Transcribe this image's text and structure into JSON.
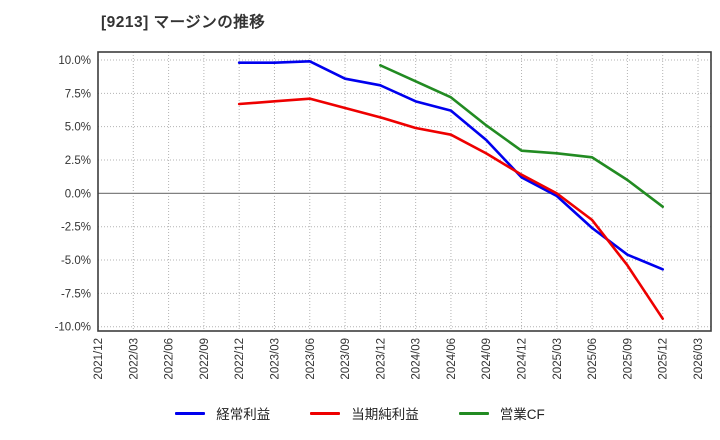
{
  "chart_data": {
    "type": "line",
    "title": "[9213]  マージンの推移",
    "categories": [
      "2021/12",
      "2022/03",
      "2022/06",
      "2022/09",
      "2022/12",
      "2023/03",
      "2023/06",
      "2023/09",
      "2023/12",
      "2024/03",
      "2024/06",
      "2024/09",
      "2024/12",
      "2025/03",
      "2025/06",
      "2025/09",
      "2025/12",
      "2026/03"
    ],
    "series": [
      {
        "id": "ordinary-income",
        "name": "経常利益",
        "color": "#0000ee",
        "values": [
          null,
          null,
          null,
          null,
          9.8,
          9.8,
          9.9,
          8.6,
          8.1,
          6.9,
          6.2,
          4.0,
          1.2,
          -0.2,
          -2.6,
          -4.6,
          -5.7,
          null
        ]
      },
      {
        "id": "net-income",
        "name": "当期純利益",
        "color": "#ee0000",
        "values": [
          null,
          null,
          null,
          null,
          6.7,
          6.9,
          7.1,
          6.4,
          5.7,
          4.9,
          4.4,
          3.0,
          1.4,
          0.0,
          -2.0,
          -5.4,
          -9.4,
          null
        ]
      },
      {
        "id": "operating-cf",
        "name": "営業CF",
        "color": "#228b22",
        "values": [
          null,
          null,
          null,
          null,
          null,
          null,
          null,
          null,
          9.6,
          8.4,
          7.2,
          5.1,
          3.2,
          3.0,
          2.7,
          1.0,
          -1.0,
          null
        ]
      }
    ],
    "y_axis": {
      "min": -10,
      "max": 10,
      "tick_step": 2.5,
      "tick_labels": [
        "10.0%",
        "7.5%",
        "5.0%",
        "2.5%",
        "0.0%",
        "-2.5%",
        "-5.0%",
        "-7.5%",
        "-10.0%"
      ],
      "unit": "%"
    },
    "x_axis": {
      "rotation": 90
    },
    "grid": true,
    "legend_position": "bottom",
    "colors": {
      "grid": "#b3b3b3",
      "zero_line": "#808080",
      "border": "#3d3d3d",
      "tick_text": "#333333"
    }
  }
}
